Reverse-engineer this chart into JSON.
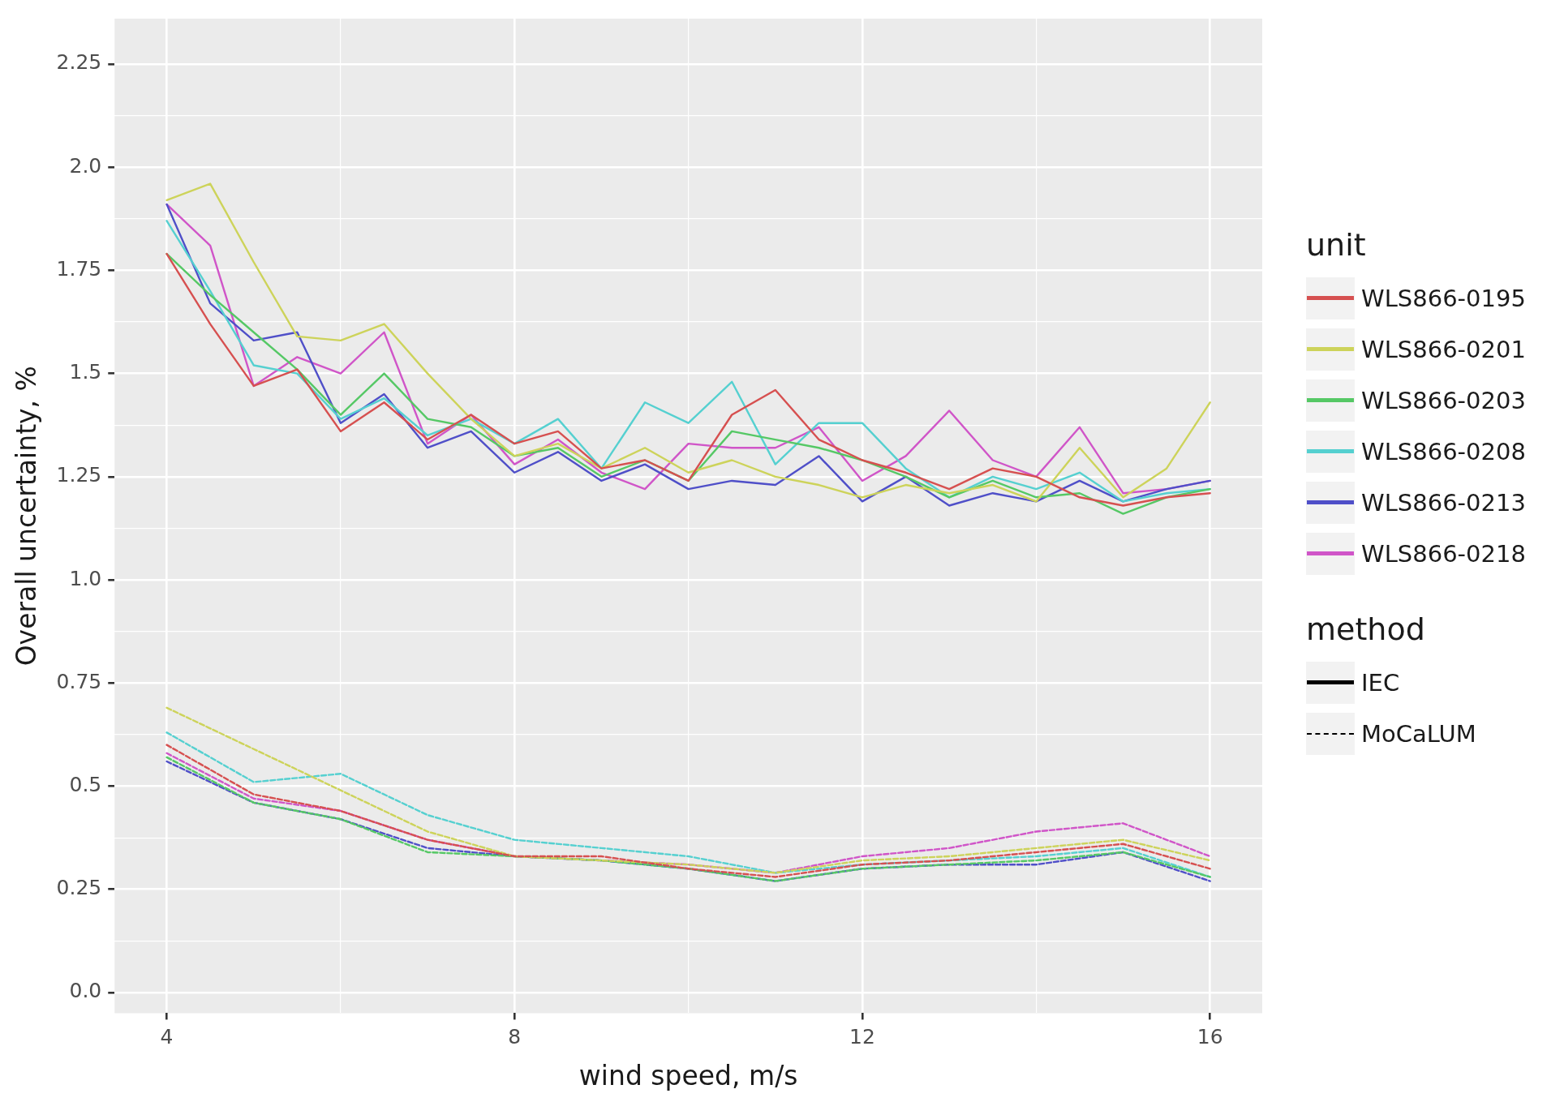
{
  "chart_data": {
    "type": "line",
    "xlabel": "wind speed, m/s",
    "ylabel": "Overall uncertainty, %",
    "legend_title": "unit",
    "legend": "right",
    "grid": true,
    "marker": "none",
    "xlim": [
      3.4,
      16.6
    ],
    "xticks": [
      4,
      {
        "value": 6,
        "label": null
      },
      8,
      {
        "value": 10,
        "label": null
      },
      12,
      {
        "value": 14,
        "label": null
      },
      16
    ],
    "ylim": [
      -0.05,
      2.36
    ],
    "yticks": [
      {
        "value": 0,
        "label": "0.0"
      },
      {
        "value": 0.125,
        "label": null
      },
      0.25,
      {
        "value": 0.375,
        "label": null
      },
      {
        "value": 0.5,
        "label": "0.5"
      },
      {
        "value": 0.625,
        "label": null
      },
      0.75,
      {
        "value": 0.875,
        "label": null
      },
      {
        "value": 1,
        "label": "1.0"
      },
      {
        "value": 1.125,
        "label": null
      },
      1.25,
      {
        "value": 1.375,
        "label": null
      },
      {
        "value": 1.5,
        "label": "1.5"
      },
      {
        "value": 1.625,
        "label": null
      },
      1.75,
      {
        "value": 1.875,
        "label": null
      },
      {
        "value": 2,
        "label": "2.0"
      },
      {
        "value": 2.125,
        "label": null
      },
      2.25
    ],
    "annotations": [
      "method",
      "IEC",
      "MoCaLUM"
    ],
    "series": [
      {
        "name": "WLS866-0195",
        "color": "#d65050",
        "line_style": "solid",
        "x": [
          4,
          4.5,
          5,
          5.5,
          6,
          6.5,
          7,
          7.5,
          8,
          8.5,
          9,
          9.5,
          10,
          10.5,
          11,
          11.5,
          12,
          12.5,
          13,
          13.5,
          14,
          14.5,
          15,
          15.5,
          16
        ],
        "values": [
          1.79,
          1.62,
          1.47,
          1.51,
          1.36,
          1.43,
          1.34,
          1.4,
          1.33,
          1.36,
          1.27,
          1.29,
          1.24,
          1.4,
          1.46,
          1.34,
          1.29,
          1.26,
          1.22,
          1.27,
          1.25,
          1.2,
          1.18,
          1.2,
          1.21
        ]
      },
      {
        "name": "WLS866-0201",
        "color": "#cdd35a",
        "line_style": "solid",
        "x": [
          4,
          4.5,
          5,
          5.5,
          6,
          6.5,
          7,
          7.5,
          8,
          8.5,
          9,
          9.5,
          10,
          10.5,
          11,
          11.5,
          12,
          12.5,
          13,
          13.5,
          14,
          14.5,
          15,
          15.5,
          16
        ],
        "values": [
          1.92,
          1.96,
          1.77,
          1.59,
          1.58,
          1.62,
          1.5,
          1.39,
          1.3,
          1.33,
          1.27,
          1.32,
          1.26,
          1.29,
          1.25,
          1.23,
          1.2,
          1.23,
          1.21,
          1.23,
          1.19,
          1.32,
          1.2,
          1.27,
          1.43
        ]
      },
      {
        "name": "WLS866-0203",
        "color": "#55c865",
        "line_style": "solid",
        "x": [
          4,
          4.5,
          5,
          5.5,
          6,
          6.5,
          7,
          7.5,
          8,
          8.5,
          9,
          9.5,
          10,
          10.5,
          11,
          11.5,
          12,
          12.5,
          13,
          13.5,
          14,
          14.5,
          15,
          15.5,
          16
        ],
        "values": [
          1.79,
          1.69,
          1.6,
          1.51,
          1.4,
          1.5,
          1.39,
          1.37,
          1.3,
          1.32,
          1.25,
          1.29,
          1.24,
          1.36,
          1.34,
          1.32,
          1.29,
          1.25,
          1.2,
          1.24,
          1.2,
          1.21,
          1.16,
          1.2,
          1.22
        ]
      },
      {
        "name": "WLS866-0208",
        "color": "#55d0d0",
        "line_style": "solid",
        "x": [
          4,
          4.5,
          5,
          5.5,
          6,
          6.5,
          7,
          7.5,
          8,
          8.5,
          9,
          9.5,
          10,
          10.5,
          11,
          11.5,
          12,
          12.5,
          13,
          13.5,
          14,
          14.5,
          15,
          15.5,
          16
        ],
        "values": [
          1.87,
          1.7,
          1.52,
          1.5,
          1.39,
          1.44,
          1.35,
          1.39,
          1.33,
          1.39,
          1.27,
          1.43,
          1.38,
          1.48,
          1.28,
          1.38,
          1.38,
          1.27,
          1.2,
          1.25,
          1.22,
          1.26,
          1.19,
          1.21,
          1.22
        ]
      },
      {
        "name": "WLS866-0213",
        "color": "#4f4fc8",
        "line_style": "solid",
        "x": [
          4,
          4.5,
          5,
          5.5,
          6,
          6.5,
          7,
          7.5,
          8,
          8.5,
          9,
          9.5,
          10,
          10.5,
          11,
          11.5,
          12,
          12.5,
          13,
          13.5,
          14,
          14.5,
          15,
          15.5,
          16
        ],
        "values": [
          1.91,
          1.67,
          1.58,
          1.6,
          1.38,
          1.45,
          1.32,
          1.36,
          1.26,
          1.31,
          1.24,
          1.28,
          1.22,
          1.24,
          1.23,
          1.3,
          1.19,
          1.25,
          1.18,
          1.21,
          1.19,
          1.24,
          1.19,
          1.22,
          1.24
        ]
      },
      {
        "name": "WLS866-0218",
        "color": "#d055c8",
        "line_style": "solid",
        "x": [
          4,
          4.5,
          5,
          5.5,
          6,
          6.5,
          7,
          7.5,
          8,
          8.5,
          9,
          9.5,
          10,
          10.5,
          11,
          11.5,
          12,
          12.5,
          13,
          13.5,
          14,
          14.5,
          15,
          15.5,
          16
        ],
        "values": [
          1.91,
          1.81,
          1.47,
          1.54,
          1.5,
          1.6,
          1.33,
          1.4,
          1.28,
          1.34,
          1.26,
          1.22,
          1.33,
          1.32,
          1.32,
          1.37,
          1.24,
          1.3,
          1.41,
          1.29,
          1.25,
          1.37,
          1.21,
          1.22,
          1.24
        ]
      },
      {
        "color": "#d65050",
        "line_style": "dashed",
        "x": [
          4,
          5,
          6,
          7,
          8,
          9,
          10,
          11,
          12,
          13,
          14,
          15,
          16
        ],
        "values": [
          0.6,
          0.48,
          0.44,
          0.37,
          0.33,
          0.33,
          0.3,
          0.28,
          0.31,
          0.32,
          0.34,
          0.36,
          0.3
        ]
      },
      {
        "color": "#cdd35a",
        "line_style": "dashed",
        "x": [
          4,
          5,
          6,
          7,
          8,
          9,
          10,
          11,
          12,
          13,
          14,
          15,
          16
        ],
        "values": [
          0.69,
          0.59,
          0.49,
          0.39,
          0.33,
          0.32,
          0.31,
          0.29,
          0.32,
          0.33,
          0.35,
          0.37,
          0.32
        ]
      },
      {
        "color": "#55c865",
        "line_style": "dashed",
        "x": [
          4,
          5,
          6,
          7,
          8,
          9,
          10,
          11,
          12,
          13,
          14,
          15,
          16
        ],
        "values": [
          0.57,
          0.46,
          0.42,
          0.34,
          0.33,
          0.32,
          0.3,
          0.27,
          0.3,
          0.31,
          0.32,
          0.34,
          0.28
        ]
      },
      {
        "color": "#55d0d0",
        "line_style": "dashed",
        "x": [
          4,
          5,
          6,
          7,
          8,
          9,
          10,
          11,
          12,
          13,
          14,
          15,
          16
        ],
        "values": [
          0.63,
          0.51,
          0.53,
          0.43,
          0.37,
          0.35,
          0.33,
          0.29,
          0.31,
          0.32,
          0.33,
          0.35,
          0.28
        ]
      },
      {
        "color": "#4f4fc8",
        "line_style": "dashed",
        "x": [
          4,
          5,
          6,
          7,
          8,
          9,
          10,
          11,
          12,
          13,
          14,
          15,
          16
        ],
        "values": [
          0.56,
          0.46,
          0.42,
          0.35,
          0.33,
          0.32,
          0.3,
          0.27,
          0.3,
          0.31,
          0.31,
          0.34,
          0.27
        ]
      },
      {
        "color": "#d055c8",
        "line_style": "dashed",
        "x": [
          4,
          5,
          6,
          7,
          8,
          9,
          10,
          11,
          12,
          13,
          14,
          15,
          16
        ],
        "values": [
          0.58,
          0.47,
          0.44,
          0.37,
          0.33,
          0.32,
          0.31,
          0.29,
          0.33,
          0.35,
          0.39,
          0.41,
          0.33
        ]
      }
    ]
  }
}
